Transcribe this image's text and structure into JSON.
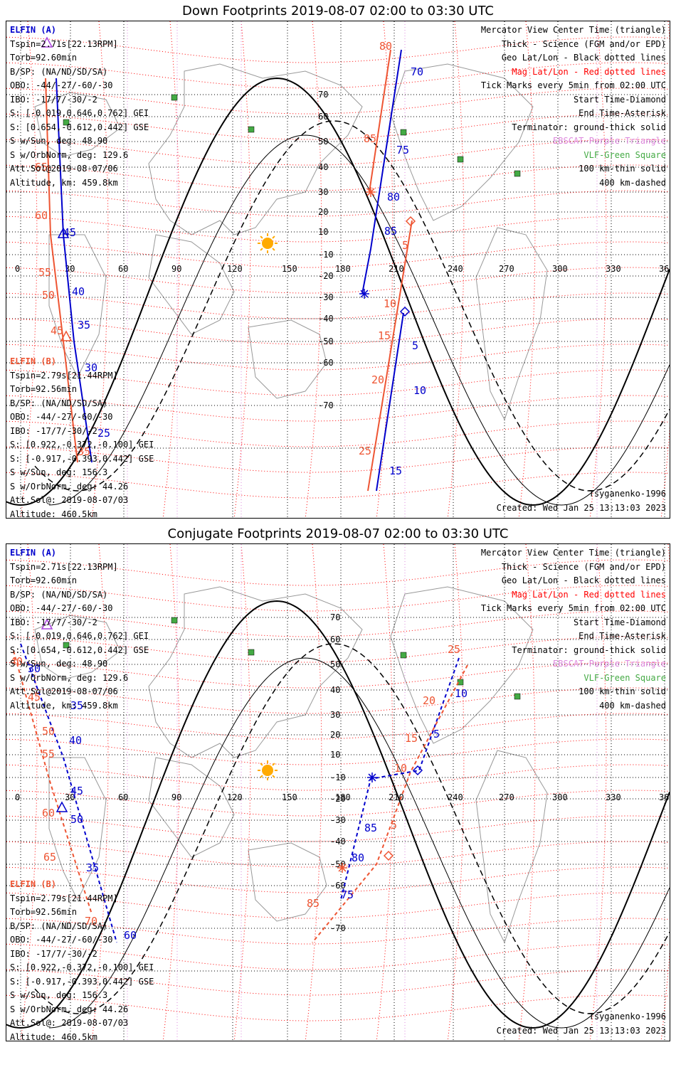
{
  "colors": {
    "elfin_a": "#0000cc",
    "elfin_b": "#ee5533",
    "mag_grid": "#ff0000",
    "geo_grid": "#000000",
    "ebsco": "#dd88dd",
    "vlf": "#44aa44",
    "terminator": "#000000",
    "land": "#999999",
    "sun": "#ffaa00"
  },
  "panels": [
    {
      "title": "Down Footprints 2019-08-07 02:00 to 03:30 UTC",
      "legend": [
        "Mercator View Center Time (triangle)",
        "Thick - Science (FGM and/or EPD)",
        "Geo Lat/Lon - Black dotted lines",
        "Mag Lat/Lon - Red dotted lines",
        "Tick Marks every 5min from 02:00 UTC",
        "Start Time-Diamond",
        "End Time-Asterisk",
        "Terminator: ground-thick solid",
        "EBSCAT-Purple Triangle",
        "VLF-Green Square",
        "100 km-thin solid",
        "400 km-dashed"
      ],
      "model": "Tsyganenko-1996",
      "created": "Created: Wed Jan 25 13:13:03 2023",
      "elfin_a": {
        "name": "ELFIN (A)",
        "lines": [
          "Tspin=2.71s[22.13RPM]",
          "Torb=92.60min",
          "B/SP: (NA/ND/SD/SA)",
          "OBO: -44/-27/-60/-30",
          "IBO: -17/7/-30/-2",
          "S: [-0.019,0.646,0.762] GEI",
          "S: [0.654,-0.612,0.442] GSE",
          "S w/Sun, deg: 48.90",
          "S w/OrbNorm, deg: 129.6",
          "Att.Sol@2019-08-07/06",
          "Altitude, km: 459.8km"
        ]
      },
      "elfin_b": {
        "name": "ELFIN (B)",
        "lines": [
          "Tspin=2.79s[21.44RPM]",
          "Torb=92.56min",
          "B/SP: (NA/ND/SD/SA)",
          "OBO: -44/-27/-60/-30",
          "IBO: -17/7/-30/-2",
          "S: [0.922,-0.372,-0.100] GEI",
          "S: [-0.917,-0.393,0.442] GSE",
          "S w/Sun, deg: 156.3",
          "S w/OrbNorm, deg: 44.26",
          "Att.Sol@: 2019-08-07/03",
          "Altitude: 460.5km"
        ]
      },
      "lon_ticks": [
        "0",
        "30",
        "60",
        "90",
        "120",
        "150",
        "180",
        "210",
        "240",
        "270",
        "300",
        "330",
        "360"
      ],
      "lat_ticks": [
        "70",
        "60",
        "50",
        "40",
        "30",
        "20",
        "10",
        "-10",
        "-20",
        "-30",
        "-40",
        "-50",
        "-60",
        "-70"
      ],
      "ticks_a1": [
        "45",
        "40",
        "35",
        "30",
        "25"
      ],
      "ticks_b1": [
        "65",
        "60",
        "55",
        "50",
        "45",
        "35"
      ],
      "ticks_a2": [
        "70",
        "75",
        "80",
        "85",
        "5",
        "10",
        "15"
      ],
      "ticks_b2": [
        "80",
        "85",
        "5",
        "10",
        "15",
        "20",
        "25"
      ],
      "mag_edge": [
        "60",
        "50"
      ]
    },
    {
      "title": "Conjugate Footprints 2019-08-07 02:00 to 03:30 UTC",
      "legend": [
        "Mercator View Center Time (triangle)",
        "Thick - Science (FGM and/or EPD)",
        "Geo Lat/Lon - Black dotted lines",
        "Mag Lat/Lon - Red dotted lines",
        "Tick Marks every 5min from 02:00 UTC",
        "Start Time-Diamond",
        "End Time-Asterisk",
        "Terminator: ground-thick solid",
        "EBSCAT-Purple Triangle",
        "VLF-Green Square",
        "100 km-thin solid",
        "400 km-dashed"
      ],
      "model": "Tsyganenko-1996",
      "created": "Created: Wed Jan 25 13:13:03 2023",
      "elfin_a": {
        "name": "ELFIN (A)",
        "lines": [
          "Tspin=2.71s[22.13RPM]",
          "Torb=92.60min",
          "B/SP: (NA/ND/SD/SA)",
          "OBO: -44/-27/-60/-30",
          "IBO: -17/7/-30/-2",
          "S: [-0.019,0.646,0.762] GEI",
          "S: [0.654,-0.612,0.442] GSE",
          "S w/Sun, deg: 48.90",
          "S w/OrbNorm, deg: 129.6",
          "Att.Sol@2019-08-07/06",
          "Altitude, km: 459.8km"
        ]
      },
      "elfin_b": {
        "name": "ELFIN (B)",
        "lines": [
          "Tspin=2.79s[21.44RPM]",
          "Torb=92.56min",
          "B/SP: (NA/ND/SD/SA)",
          "OBO: -44/-27/-60/-30",
          "IBO: -17/7/-30/-2",
          "S: [0.922,-0.372,-0.100] GEI",
          "S: [-0.917,-0.393,0.442] GSE",
          "S w/Sun, deg: 156.3",
          "S w/OrbNorm, deg: 44.26",
          "Att.Sol@: 2019-08-07/03",
          "Altitude: 460.5km"
        ]
      },
      "lon_ticks": [
        "0",
        "30",
        "60",
        "90",
        "120",
        "150",
        "180",
        "210",
        "240",
        "270",
        "300",
        "330",
        "360"
      ],
      "lat_ticks": [
        "70",
        "60",
        "50",
        "40",
        "30",
        "20",
        "10",
        "-10",
        "-20",
        "-30",
        "-40",
        "-50",
        "-60",
        "-70"
      ],
      "ticks_a1": [
        "30",
        "35",
        "40",
        "45",
        "50",
        "35",
        "60"
      ],
      "ticks_b1": [
        "40",
        "45",
        "50",
        "55",
        "60",
        "65",
        "70"
      ],
      "ticks_a2": [
        "5",
        "10",
        "75",
        "80",
        "85"
      ],
      "ticks_b2": [
        "25",
        "20",
        "15",
        "10",
        "5",
        "85"
      ],
      "mag_edge": []
    }
  ]
}
